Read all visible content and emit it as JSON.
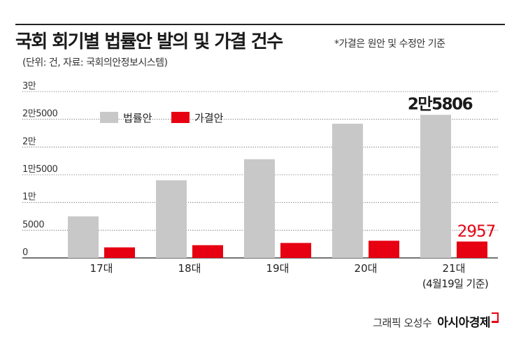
{
  "header": {
    "title": "국회 회기별 법률안 발의 및 가결 건수",
    "note": "*가결은 원안 및 수정안 기준",
    "unit": "(단위: 건, 자료: 국회의안정보시스템)"
  },
  "credit": {
    "artist": "그래픽 오성수",
    "brand": "아시아경제"
  },
  "colors": {
    "proposed": "#c8c8c8",
    "passed": "#e60012",
    "grid": "#555555",
    "axis": "#222222"
  },
  "chart_data": {
    "type": "bar",
    "categories": [
      "17대",
      "18대",
      "19대",
      "20대",
      "21대"
    ],
    "category_sublabels": [
      "",
      "",
      "",
      "",
      "(4월19일 기준)"
    ],
    "series": [
      {
        "name": "법률안",
        "values": [
          7500,
          14000,
          17800,
          24200,
          25806
        ]
      },
      {
        "name": "가결안",
        "values": [
          1900,
          2300,
          2700,
          3100,
          2957
        ]
      }
    ],
    "ylim": [
      0,
      30000
    ],
    "yticks": [
      0,
      5000,
      10000,
      15000,
      20000,
      25000,
      30000
    ],
    "ytick_labels": [
      "0",
      "5000",
      "1만",
      "1만5000",
      "2만",
      "2만5000",
      "3만"
    ],
    "annotations": [
      {
        "series": 0,
        "index": 4,
        "text": "2만5806"
      },
      {
        "series": 1,
        "index": 4,
        "text": "2957"
      }
    ],
    "legend_position": "top-left",
    "grid": true
  }
}
